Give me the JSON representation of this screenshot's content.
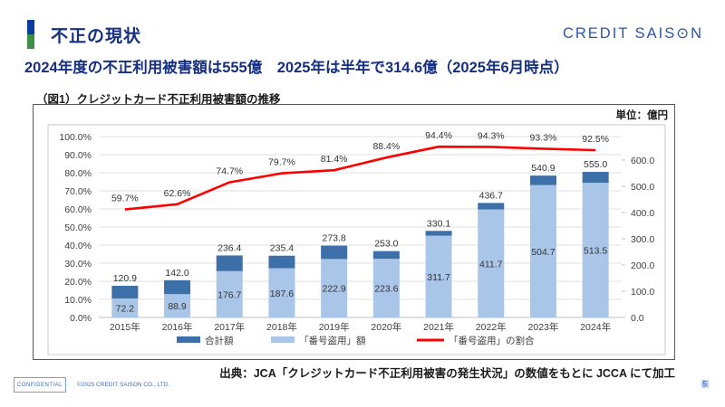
{
  "header": {
    "title": "不正の現状",
    "logo": "CREDIT SAIS⊙N"
  },
  "headline": "2024年度の不正利用被害額は555億　2025年は半年で314.6億（2025年6月時点）",
  "figure": {
    "caption": "（図1）クレジットカード不正利用被害額の推移",
    "unit_label": "単位：億円"
  },
  "source_note": "出典：JCA「クレジットカード不正利用被害の発生状況」の数値をもとに JCCA にて加工",
  "footer": {
    "confidential": "CONFIDENTIAL",
    "copyright": "©2025 CREDIT SAISON CO., LTD.",
    "page": "5"
  },
  "colors": {
    "title_navy": "#16307f",
    "logo_blue": "#2f55a4",
    "accent_blue": "#0b3d9e",
    "accent_green": "#3e9048",
    "bar_total": "#3d6fa8",
    "bar_theft": "#a9c6e8",
    "line_red": "#ff0000"
  },
  "chart_data": {
    "type": "combo",
    "title": "（図1）クレジットカード不正利用被害額の推移",
    "unit_label": "単位：億円",
    "categories": [
      "2015年",
      "2016年",
      "2017年",
      "2018年",
      "2019年",
      "2020年",
      "2021年",
      "2022年",
      "2023年",
      "2024年"
    ],
    "series": [
      {
        "name": "合計額",
        "type": "bar-stack-top",
        "color": "#3d6fa8",
        "values": [
          120.9,
          142.0,
          236.4,
          235.4,
          273.8,
          253.0,
          330.1,
          436.7,
          540.9,
          555.0
        ]
      },
      {
        "name": "「番号盗用」額",
        "type": "bar-stack-bottom",
        "color": "#a9c6e8",
        "values": [
          72.2,
          88.9,
          176.7,
          187.6,
          222.9,
          223.6,
          311.7,
          411.7,
          504.7,
          513.5
        ]
      },
      {
        "name": "「番号盗用」の割合",
        "type": "line",
        "color": "#ff0000",
        "axis": "left-percent",
        "values": [
          59.7,
          62.6,
          74.7,
          79.7,
          81.4,
          88.4,
          94.4,
          94.3,
          93.3,
          92.5
        ]
      }
    ],
    "y_left": {
      "min": 0,
      "max": 100,
      "step": 10,
      "suffix": "%"
    },
    "y_right": {
      "min": 0,
      "max": 600,
      "step": 100
    },
    "grid": true,
    "legend_position": "bottom"
  }
}
